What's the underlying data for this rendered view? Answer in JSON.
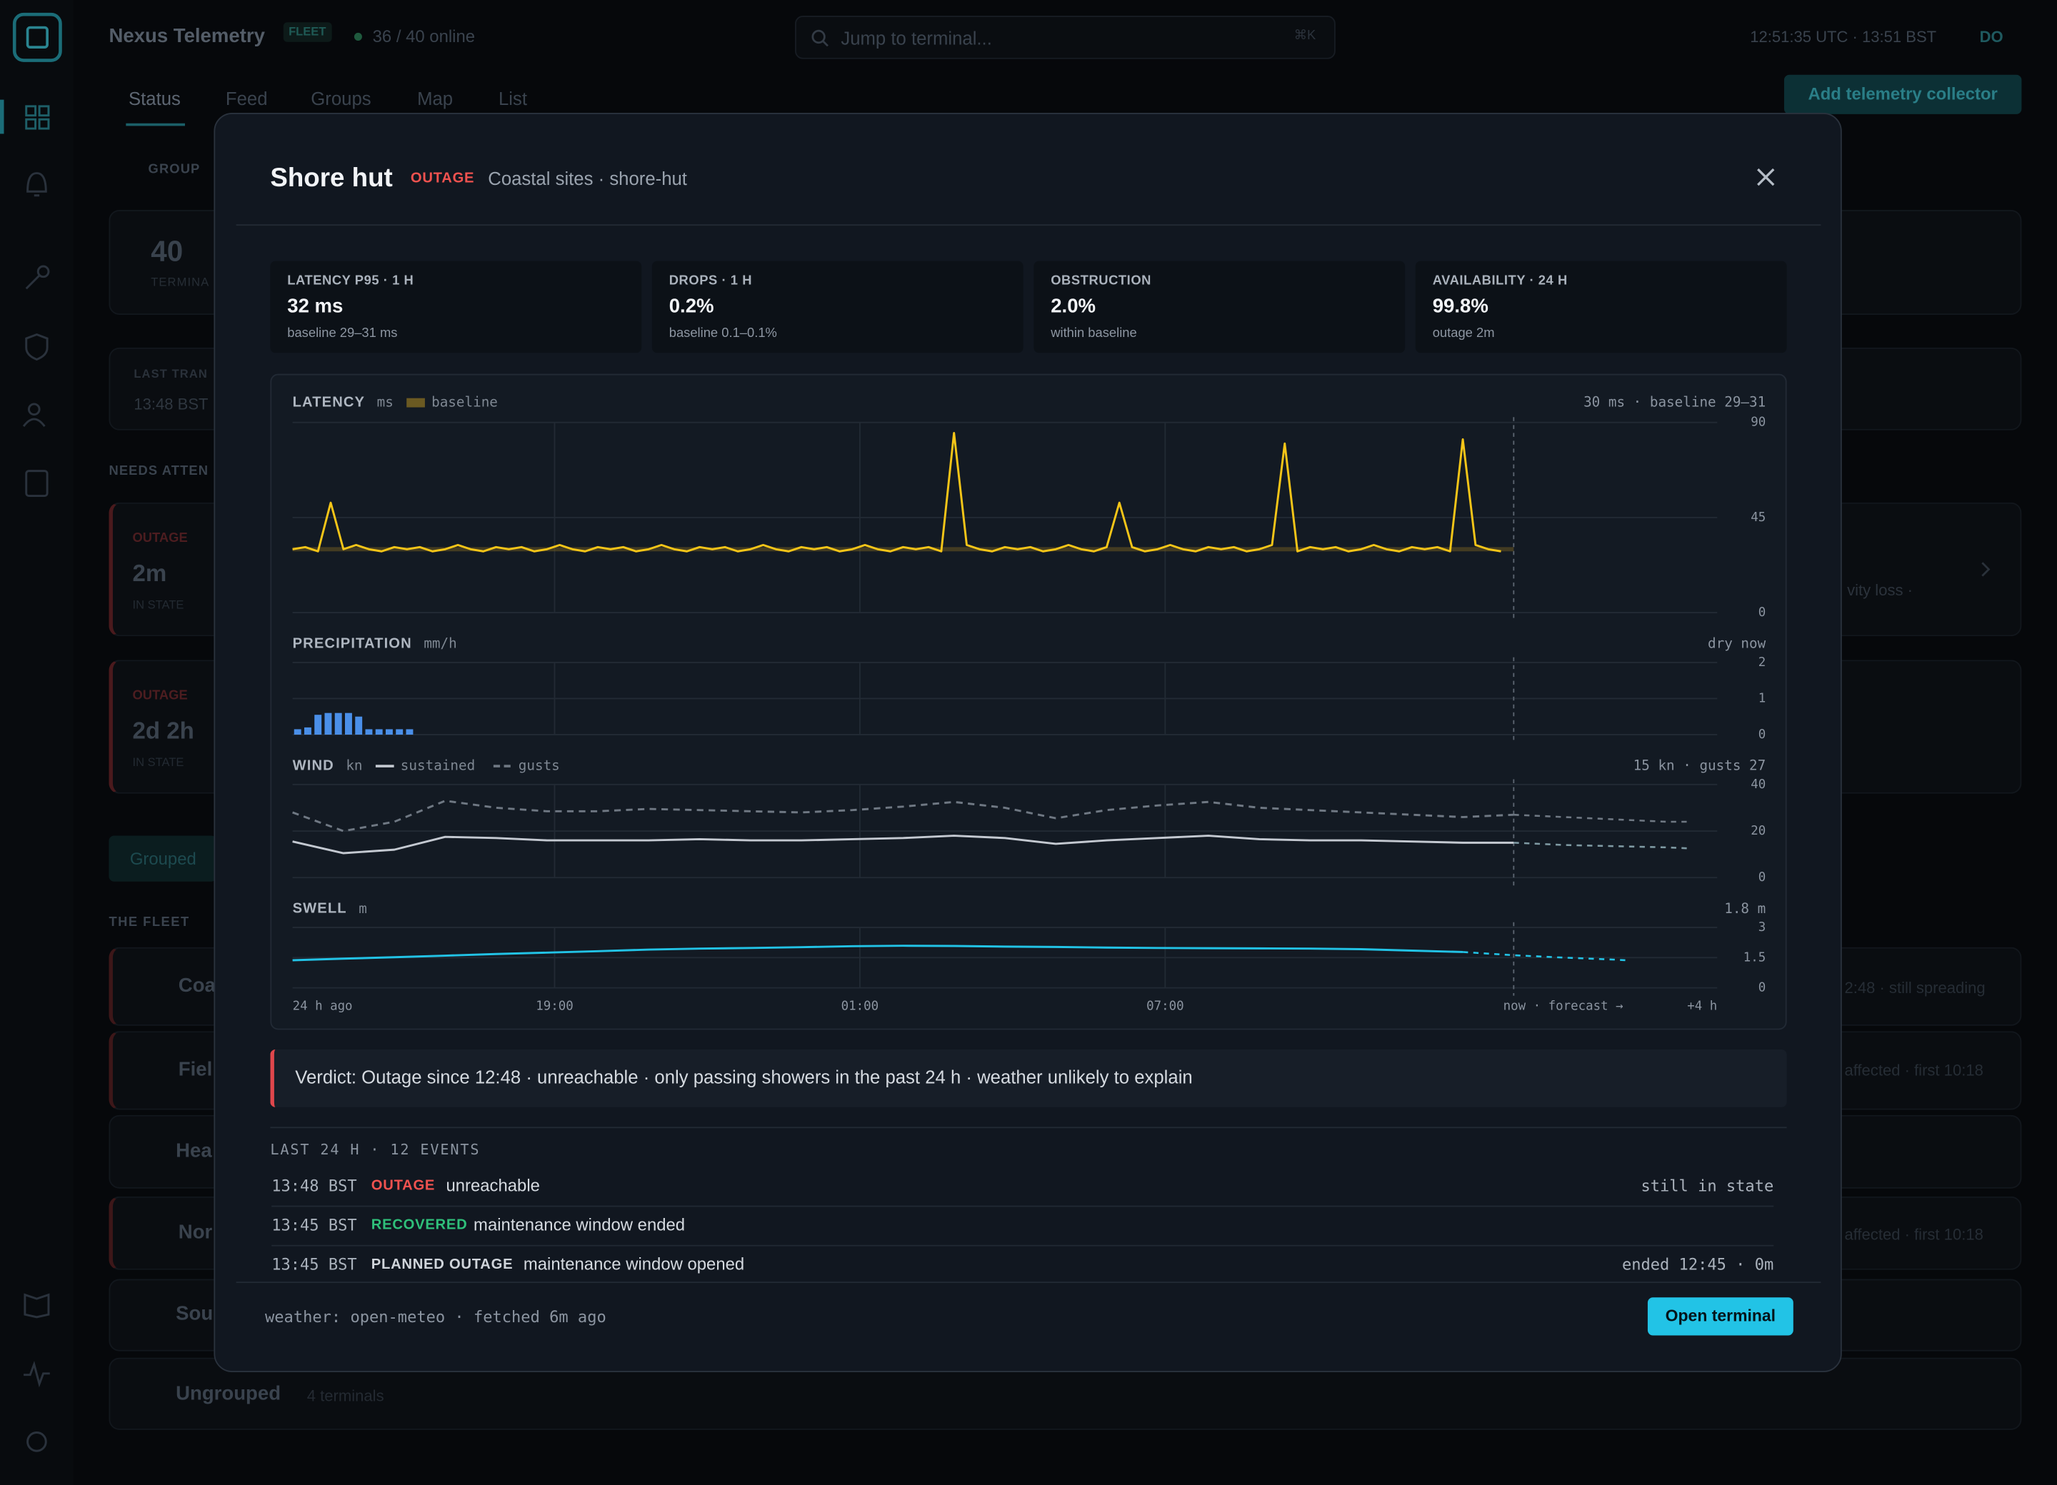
{
  "topbar": {
    "brand": "Nexus Telemetry",
    "badge": "FLEET",
    "online": "36 / 40 online",
    "search": "Jump to terminal...",
    "shortcut": "⌘K",
    "clock": "12:51:35 UTC · 13:51 BST",
    "avatar": "DO"
  },
  "tabs": [
    "Status",
    "Feed",
    "Groups",
    "Map",
    "List"
  ],
  "action": "Add telemetry collector",
  "background": {
    "group_label": "GROUP",
    "total": "40",
    "total_label": "TERMINA",
    "last_label": "LAST TRAN",
    "last_time": "13:48 BST",
    "attention": "NEEDS ATTEN",
    "alerts": [
      {
        "status": "OUTAGE",
        "duration": "2m",
        "note": "IN STATE",
        "detail": "vity loss ·"
      },
      {
        "status": "OUTAGE",
        "duration": "2d 2h",
        "note": "IN STATE"
      }
    ],
    "chip": "Grouped",
    "fleet": "THE FLEET",
    "groups": [
      {
        "name": "Coa",
        "detail": "2:48 · still spreading"
      },
      {
        "name": "Fiel",
        "detail": "affected · first 10:18"
      },
      {
        "name": "Hea"
      },
      {
        "name": "Nor",
        "detail": "affected · first 10:18"
      },
      {
        "name": "Sou"
      },
      {
        "name": "Ungrouped",
        "count": "4 terminals"
      }
    ]
  },
  "modal": {
    "title": "Shore hut",
    "status": "OUTAGE",
    "crumb": "Coastal sites · shore-hut",
    "stats": [
      {
        "label": "LATENCY P95 · 1 H",
        "value": "32 ms",
        "note": "baseline 29–31 ms"
      },
      {
        "label": "DROPS · 1 H",
        "value": "0.2%",
        "note": "baseline 0.1–0.1%"
      },
      {
        "label": "OBSTRUCTION",
        "value": "2.0%",
        "note": "within baseline"
      },
      {
        "label": "AVAILABILITY · 24 H",
        "value": "99.8%",
        "note": "outage 2m"
      }
    ],
    "charts": {
      "xlim": [
        0,
        28
      ],
      "now": 24,
      "xticks": [
        {
          "value": 0,
          "label": "24 h ago"
        },
        {
          "value": 5.15,
          "label": "19:00"
        },
        {
          "value": 11.15,
          "label": "01:00"
        },
        {
          "value": 17.15,
          "label": "07:00"
        },
        {
          "value": 24,
          "label": "now · forecast →"
        },
        {
          "value": 28,
          "label": "+4 h"
        }
      ],
      "panels": [
        {
          "type": "line",
          "title": "LATENCY",
          "unit": "ms",
          "summary": "30 ms · baseline 29–31",
          "ylim": [
            0,
            90
          ],
          "yticks": [
            90,
            45,
            0
          ],
          "baseline": {
            "name": "baseline",
            "range": [
              29,
              31
            ],
            "color": "#6b5a22"
          },
          "series": [
            {
              "color": "#f5c518",
              "style": "solid",
              "x": [
                0,
                0.25,
                0.5,
                0.75,
                1,
                1.25,
                1.5,
                1.75,
                2,
                2.25,
                2.5,
                2.75,
                3,
                3.25,
                3.5,
                3.75,
                4,
                4.25,
                4.5,
                4.75,
                5,
                5.25,
                5.5,
                5.75,
                6,
                6.25,
                6.5,
                6.75,
                7,
                7.25,
                7.5,
                7.75,
                8,
                8.25,
                8.5,
                8.75,
                9,
                9.25,
                9.5,
                9.75,
                10,
                10.25,
                10.5,
                10.75,
                11,
                11.25,
                11.5,
                11.75,
                12,
                12.25,
                12.5,
                12.75,
                13,
                13.25,
                13.5,
                13.75,
                14,
                14.25,
                14.5,
                14.75,
                15,
                15.25,
                15.5,
                15.75,
                16,
                16.25,
                16.5,
                16.75,
                17,
                17.25,
                17.5,
                17.75,
                18,
                18.25,
                18.5,
                18.75,
                19,
                19.25,
                19.5,
                19.75,
                20,
                20.25,
                20.5,
                20.75,
                21,
                21.25,
                21.5,
                21.75,
                22,
                22.25,
                22.5,
                22.75,
                23,
                23.25,
                23.5,
                23.75
              ],
              "values": [
                30,
                31,
                29,
                52,
                30,
                32,
                30,
                29,
                31,
                30,
                31,
                29,
                30,
                32,
                30,
                29,
                31,
                30,
                31,
                29,
                30,
                32,
                30,
                29,
                31,
                30,
                31,
                29,
                30,
                32,
                30,
                29,
                31,
                30,
                31,
                29,
                30,
                32,
                30,
                29,
                31,
                30,
                31,
                29,
                30,
                32,
                30,
                29,
                31,
                30,
                31,
                29,
                85,
                32,
                30,
                29,
                31,
                30,
                31,
                29,
                30,
                32,
                30,
                29,
                31,
                52,
                31,
                29,
                30,
                32,
                30,
                29,
                31,
                30,
                31,
                29,
                30,
                32,
                80,
                29,
                31,
                30,
                31,
                29,
                30,
                32,
                30,
                29,
                31,
                30,
                31,
                29,
                82,
                32,
                30,
                29
              ]
            }
          ]
        },
        {
          "type": "bar",
          "title": "PRECIPITATION",
          "unit": "mm/h",
          "summary": "dry now",
          "ylim": [
            0,
            2
          ],
          "yticks": [
            2,
            1,
            0
          ],
          "series": [
            {
              "color": "#4a8fe8",
              "x": [
                0.1,
                0.3,
                0.5,
                0.7,
                0.9,
                1.1,
                1.3,
                1.5,
                1.7,
                1.9,
                2.1,
                2.3
              ],
              "values": [
                0.15,
                0.2,
                0.55,
                0.6,
                0.6,
                0.6,
                0.5,
                0.15,
                0.15,
                0.15,
                0.15,
                0.15
              ]
            }
          ]
        },
        {
          "type": "line",
          "title": "WIND",
          "unit": "kn",
          "summary": "15 kn · gusts 27",
          "ylim": [
            0,
            40
          ],
          "yticks": [
            40,
            20,
            0
          ],
          "series": [
            {
              "name": "sustained",
              "color": "#c4c9d1",
              "style": "solid",
              "x": [
                0,
                1,
                2,
                3,
                4,
                5,
                6,
                7,
                8,
                9,
                10,
                11,
                12,
                13,
                14,
                15,
                16,
                17,
                18,
                19,
                20,
                21,
                22,
                23,
                24
              ],
              "values": [
                15.5,
                10.5,
                12,
                17.5,
                17,
                16,
                16,
                16,
                16.5,
                16,
                16,
                16.5,
                17,
                18,
                17,
                14.5,
                16,
                17,
                18,
                16.5,
                16,
                16,
                15.5,
                15,
                15
              ],
              "forecast": {
                "color": "#7f9aa3",
                "x": [
                  24,
                  25,
                  26,
                  27,
                  27.5
                ],
                "values": [
                  15,
                  14,
                  13.5,
                  13,
                  12.5
                ]
              }
            },
            {
              "name": "gusts",
              "color": "#6f7883",
              "style": "dashed",
              "x": [
                0,
                1,
                2,
                3,
                4,
                5,
                6,
                7,
                8,
                9,
                10,
                11,
                12,
                13,
                14,
                15,
                16,
                17,
                18,
                19,
                20,
                21,
                22,
                23,
                24
              ],
              "values": [
                28,
                20,
                24,
                33,
                30,
                28.5,
                28.5,
                29.5,
                29,
                28.5,
                28,
                29,
                30.5,
                32.5,
                30,
                25.5,
                29,
                31,
                32.5,
                30,
                29,
                28,
                27,
                26,
                27
              ],
              "forecast": {
                "color": "#6f7883",
                "x": [
                  24,
                  25,
                  26,
                  27,
                  27.5
                ],
                "values": [
                  27,
                  26,
                  25,
                  24,
                  24
                ]
              }
            }
          ]
        },
        {
          "type": "line",
          "title": "SWELL",
          "unit": "m",
          "summary": "1.8 m",
          "ylim": [
            0,
            3
          ],
          "yticks": [
            3,
            1.5,
            0
          ],
          "series": [
            {
              "color": "#22c3e6",
              "style": "solid",
              "x": [
                0,
                1,
                2,
                3,
                4,
                5,
                6,
                7,
                8,
                9,
                10,
                11,
                12,
                13,
                14,
                15,
                16,
                17,
                18,
                19,
                20,
                21,
                22,
                23
              ],
              "values": [
                1.37,
                1.45,
                1.52,
                1.6,
                1.68,
                1.75,
                1.82,
                1.9,
                1.95,
                1.98,
                2.02,
                2.07,
                2.09,
                2.08,
                2.05,
                2.03,
                2.0,
                1.98,
                1.97,
                1.96,
                1.95,
                1.92,
                1.85,
                1.78
              ],
              "forecast": {
                "color": "#22c3e6",
                "x": [
                  23,
                  24,
                  25,
                  26,
                  26.2
                ],
                "values": [
                  1.78,
                  1.62,
                  1.5,
                  1.4,
                  1.37
                ]
              }
            }
          ]
        }
      ]
    },
    "verdict": "Verdict: Outage since 12:48 · unreachable · only passing showers in the past 24 h · weather unlikely to explain",
    "events": {
      "header": "LAST 24 H · 12 EVENTS",
      "rows": [
        {
          "time": "13:48 BST",
          "tag": "OUTAGE",
          "text": "unreachable",
          "right": "still in state"
        },
        {
          "time": "13:45 BST",
          "tag": "RECOVERED",
          "text": "maintenance window ended"
        },
        {
          "time": "13:45 BST",
          "tag": "PLANNED OUTAGE",
          "text": "maintenance window opened",
          "right": "ended 12:45 · 0m"
        }
      ]
    },
    "footer": {
      "source": "weather: open-meteo · fetched 6m ago",
      "button": "Open terminal"
    }
  }
}
